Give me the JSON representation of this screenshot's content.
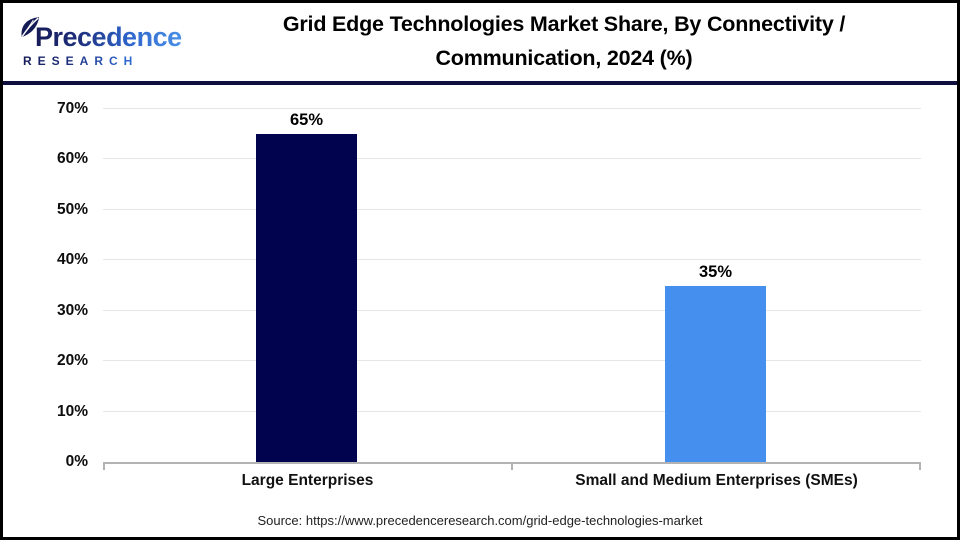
{
  "logo": {
    "brand": "Precedence",
    "subtitle": "RESEARCH"
  },
  "header": {
    "title_line1": "Grid Edge Technologies Market Share, By Connectivity /",
    "title_line2": "Communication, 2024 (%)"
  },
  "chart_data": {
    "type": "bar",
    "title": "Grid Edge Technologies Market Share, By Connectivity / Communication, 2024 (%)",
    "categories": [
      "Large Enterprises",
      "Small and Medium Enterprises (SMEs)"
    ],
    "values": [
      65,
      35
    ],
    "value_labels": [
      "65%",
      "35%"
    ],
    "bar_colors": [
      "#02034f",
      "#4590ee"
    ],
    "ylim": [
      0,
      70
    ],
    "ytick_step": 10,
    "ytick_labels": [
      "0%",
      "10%",
      "20%",
      "30%",
      "40%",
      "50%",
      "60%",
      "70%"
    ],
    "grid": "horizontal-light",
    "legend": "none"
  },
  "footer": {
    "source": "Source: https://www.precedenceresearch.com/grid-edge-technologies-market"
  },
  "colors": {
    "bar_large_enterprises": "#02034f",
    "bar_smes": "#4590ee",
    "header_divider": "#0f0f3d",
    "gridline": "#e6e6e6",
    "axis_line": "#b3b3b3",
    "title_text": "#000000",
    "logo_navy": "#161b57",
    "logo_blue": "#4a90e8"
  }
}
